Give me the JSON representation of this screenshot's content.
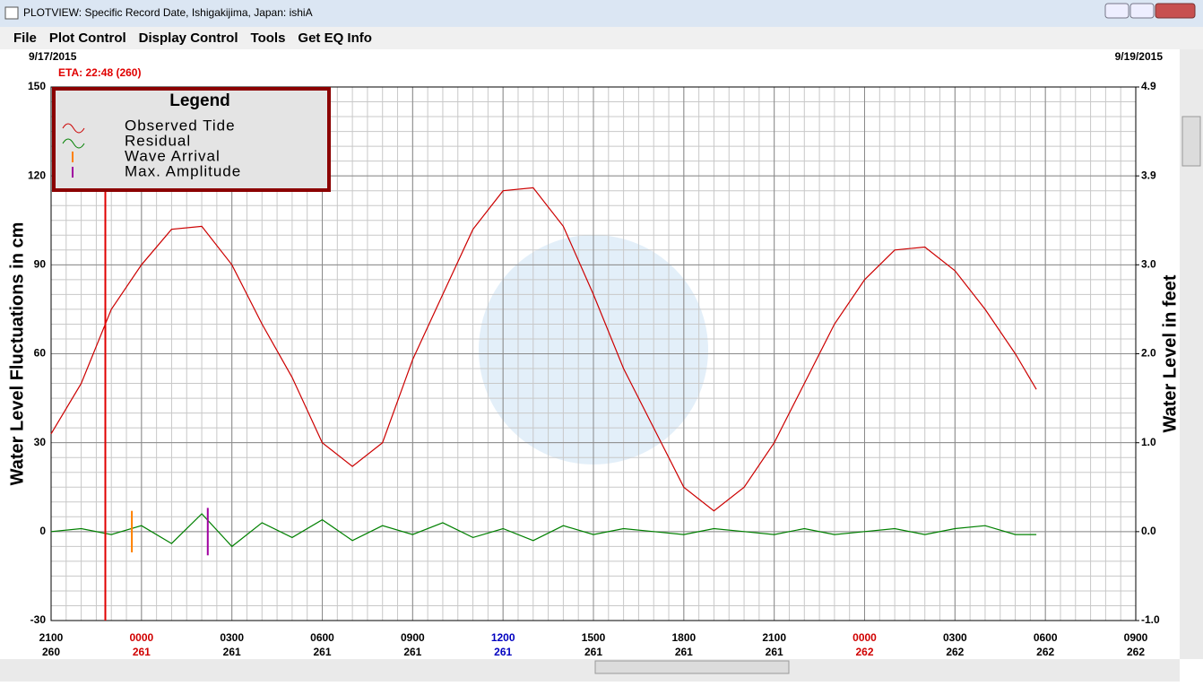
{
  "window": {
    "title": "PLOTVIEW: Specific Record Date, Ishigakijima, Japan: ishiA"
  },
  "menu": [
    "File",
    "Plot Control",
    "Display Control",
    "Tools",
    "Get EQ Info"
  ],
  "chart_data": {
    "type": "line",
    "start_date": "9/17/2015",
    "end_date": "9/19/2015",
    "eta_label": "ETA: 22:48 (260)",
    "eta_x": 1.8,
    "eta_color": "#e00000",
    "wave_arrival_x": 2.68,
    "wave_arrival_range": [
      -7,
      7
    ],
    "max_amplitude_x": 5.2,
    "max_amplitude_range": [
      -8,
      8
    ],
    "ylabel": "Water Level Fluctuations in cm",
    "y2label": "Water Level in feet",
    "legend_title": "Legend",
    "legend": [
      {
        "name": "Observed Tide",
        "color": "#cc0000"
      },
      {
        "name": "Residual",
        "color": "#008000"
      },
      {
        "name": "Wave Arrival",
        "color": "#ff8000"
      },
      {
        "name": "Max. Amplitude",
        "color": "#a000a0"
      }
    ],
    "xlim": [
      0,
      36
    ],
    "xticks": [
      {
        "value": 0,
        "label": "2100"
      },
      {
        "value": 3,
        "label": "0000"
      },
      {
        "value": 6,
        "label": "0300"
      },
      {
        "value": 9,
        "label": "0600"
      },
      {
        "value": 12,
        "label": "0900"
      },
      {
        "value": 15,
        "label": "1200"
      },
      {
        "value": 18,
        "label": "1500"
      },
      {
        "value": 21,
        "label": "1800"
      },
      {
        "value": 24,
        "label": "2100"
      },
      {
        "value": 27,
        "label": "0000"
      },
      {
        "value": 30,
        "label": "0300"
      },
      {
        "value": 33,
        "label": "0600"
      },
      {
        "value": 36,
        "label": "0900"
      }
    ],
    "xtick_days": [
      "260",
      "261",
      "261",
      "261",
      "261",
      "261",
      "261",
      "261",
      "261",
      "262",
      "262",
      "262",
      "262"
    ],
    "xtick_colors": [
      "#000",
      "#d00000",
      "#000",
      "#000",
      "#000",
      "#0000c0",
      "#000",
      "#000",
      "#000",
      "#d00000",
      "#000",
      "#000",
      "#000"
    ],
    "ylim": [
      -30,
      150
    ],
    "yticks": [
      -30,
      0,
      30,
      60,
      90,
      120,
      150
    ],
    "y2lim": [
      -0.984,
      4.921
    ],
    "y2ticks": [
      {
        "value": -0.984,
        "label": "-1.0"
      },
      {
        "value": 0,
        "label": "0.0"
      },
      {
        "value": 0.984,
        "label": "1.0"
      },
      {
        "value": 1.969,
        "label": "2.0"
      },
      {
        "value": 2.953,
        "label": "3.0"
      },
      {
        "value": 3.937,
        "label": "3.9"
      },
      {
        "value": 4.921,
        "label": "4.9"
      }
    ],
    "grid": true,
    "x": [
      0,
      1,
      2,
      3,
      4,
      5,
      6,
      7,
      8,
      9,
      10,
      11,
      12,
      13,
      14,
      15,
      16,
      17,
      18,
      19,
      20,
      21,
      22,
      23,
      24,
      25,
      26,
      27,
      28,
      29,
      30,
      31,
      32,
      32.7
    ],
    "series": [
      {
        "name": "Observed Tide",
        "color": "#cc0000",
        "values": [
          33,
          50,
          75,
          90,
          102,
          103,
          90,
          70,
          52,
          30,
          22,
          30,
          58,
          80,
          102,
          115,
          116,
          103,
          80,
          55,
          35,
          15,
          7,
          15,
          30,
          50,
          70,
          85,
          95,
          96,
          88,
          75,
          60,
          48
        ]
      },
      {
        "name": "Residual",
        "color": "#008000",
        "values": [
          0,
          1,
          -1,
          2,
          -4,
          6,
          -5,
          3,
          -2,
          4,
          -3,
          2,
          -1,
          3,
          -2,
          1,
          -3,
          2,
          -1,
          1,
          0,
          -1,
          1,
          0,
          -1,
          1,
          -1,
          0,
          1,
          -1,
          1,
          2,
          -1,
          -1
        ]
      }
    ]
  }
}
